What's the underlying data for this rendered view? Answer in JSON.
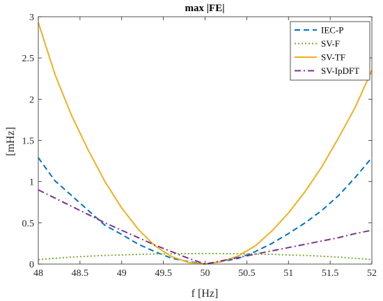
{
  "chart_data": {
    "type": "line",
    "title": "max |FE|",
    "xlabel": "f [Hz]",
    "ylabel": "[mHz]",
    "xlim": [
      48,
      52
    ],
    "ylim": [
      0,
      3
    ],
    "xticks": [
      48,
      48.5,
      49,
      49.5,
      50,
      50.5,
      51,
      51.5,
      52
    ],
    "yticks": [
      0,
      0.5,
      1,
      1.5,
      2,
      2.5,
      3
    ],
    "xtick_labels": [
      "48",
      "48.5",
      "49",
      "49.5",
      "50",
      "50.5",
      "51",
      "51.5",
      "52"
    ],
    "ytick_labels": [
      "0",
      "0.5",
      "1",
      "1.5",
      "2",
      "2.5",
      "3"
    ],
    "grid": false,
    "legend_position": "top-right",
    "x": [
      48,
      48.2,
      48.4,
      48.6,
      48.8,
      49,
      49.2,
      49.4,
      49.6,
      49.8,
      50,
      50.2,
      50.4,
      50.6,
      50.8,
      51,
      51.2,
      51.4,
      51.6,
      51.8,
      52
    ],
    "series": [
      {
        "name": "IEC-P",
        "color": "#0072BD",
        "dash": "dashed",
        "values": [
          1.29,
          1.01,
          0.83,
          0.65,
          0.47,
          0.36,
          0.24,
          0.15,
          0.07,
          0.03,
          0.0,
          0.03,
          0.07,
          0.15,
          0.25,
          0.37,
          0.5,
          0.65,
          0.83,
          1.05,
          1.29
        ]
      },
      {
        "name": "SV-F",
        "color": "#77AC30",
        "dash": "dotted",
        "values": [
          0.055,
          0.07,
          0.085,
          0.095,
          0.105,
          0.11,
          0.118,
          0.122,
          0.125,
          0.127,
          0.128,
          0.127,
          0.125,
          0.122,
          0.118,
          0.11,
          0.105,
          0.095,
          0.085,
          0.07,
          0.055
        ]
      },
      {
        "name": "SV-TF",
        "color": "#EDB120",
        "dash": "solid",
        "values": [
          2.93,
          2.3,
          1.8,
          1.38,
          1.0,
          0.68,
          0.42,
          0.22,
          0.09,
          0.02,
          0.0,
          0.03,
          0.1,
          0.22,
          0.4,
          0.62,
          0.88,
          1.18,
          1.53,
          1.9,
          2.35
        ]
      },
      {
        "name": "SV-IpDFT",
        "color": "#7E2F8E",
        "dash": "dashdot",
        "values": [
          0.9,
          0.8,
          0.7,
          0.6,
          0.5,
          0.41,
          0.32,
          0.23,
          0.15,
          0.07,
          0.0,
          0.04,
          0.08,
          0.12,
          0.16,
          0.2,
          0.24,
          0.28,
          0.32,
          0.37,
          0.41
        ]
      }
    ]
  }
}
